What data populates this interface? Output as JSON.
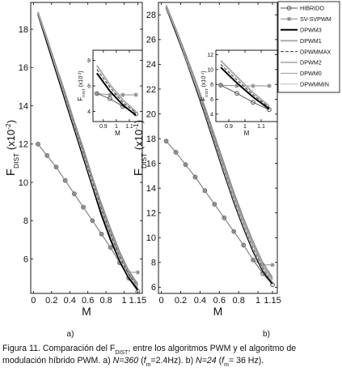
{
  "chart_data": [
    {
      "type": "line",
      "xlabel": "M",
      "ylabel": {
        "text": "F",
        "sub": "DIST",
        "unit": " (x10",
        "exp": "-2",
        "end": ")"
      },
      "label": "a)",
      "legend": true,
      "xlim": [
        -0.03,
        1.2
      ],
      "xticks": [
        0,
        0.2,
        0.4,
        0.6,
        0.8,
        1,
        1.15
      ],
      "ylim": [
        4.2,
        19.4
      ],
      "yticks": [
        6,
        8,
        10,
        12,
        14,
        16,
        18
      ],
      "x": [
        0.05,
        0.15,
        0.25,
        0.35,
        0.45,
        0.55,
        0.65,
        0.75,
        0.85,
        0.95,
        1.05,
        1.15
      ],
      "series": [
        {
          "name": "HIBRIDO",
          "color": "#555555",
          "marker": "circle",
          "values": [
            12,
            11.4,
            10.8,
            10.1,
            9.4,
            8.7,
            8.0,
            7.3,
            6.6,
            5.8,
            5.0,
            4.3
          ]
        },
        {
          "name": "SV-SVPWM",
          "color": "#888888",
          "marker": "star",
          "values": [
            12,
            11.4,
            10.8,
            10.1,
            9.4,
            8.7,
            8.0,
            7.3,
            6.6,
            5.8,
            5.3,
            5.3
          ]
        },
        {
          "name": "DPWM3",
          "color": "#000000",
          "linewidth": 2,
          "values": [
            18.8,
            17.3,
            15.8,
            14.3,
            12.8,
            11.3,
            9.8,
            8.3,
            7.0,
            5.9,
            5.0,
            4.4
          ]
        },
        {
          "name": "DPWM1",
          "color": "#aaaaaa",
          "linewidth": 2,
          "values": [
            18.9,
            17.5,
            16.0,
            14.6,
            13.1,
            11.6,
            10.2,
            8.7,
            7.4,
            6.2,
            5.3,
            4.6
          ]
        },
        {
          "name": "DPWMMAX",
          "color": "#333333",
          "dash": true,
          "values": [
            18.9,
            17.4,
            15.9,
            14.5,
            13.0,
            11.5,
            10.0,
            8.6,
            7.3,
            6.1,
            5.2,
            4.5
          ]
        },
        {
          "name": "DPWM2",
          "color": "#777777",
          "values": [
            18.9,
            17.5,
            16.1,
            14.7,
            13.2,
            11.8,
            10.3,
            8.9,
            7.6,
            6.4,
            5.4,
            4.7
          ]
        },
        {
          "name": "DPWM0",
          "color": "#999999",
          "values": [
            18.9,
            17.4,
            16.0,
            14.6,
            13.1,
            11.7,
            10.2,
            8.8,
            7.5,
            6.3,
            5.3,
            4.6
          ]
        },
        {
          "name": "DPWMMIN",
          "color": "#bbbbbb",
          "values": [
            18.8,
            17.4,
            15.9,
            14.4,
            12.9,
            11.4,
            9.9,
            8.5,
            7.2,
            6.0,
            5.1,
            4.5
          ]
        }
      ]
    },
    {
      "type": "line",
      "inset": true,
      "xlabel": "M",
      "ylabel": {
        "text": "F",
        "sub": "DIST",
        "unit": " (x10",
        "exp": "-2",
        "end": ")"
      },
      "xlim": [
        0.82,
        1.2
      ],
      "xticks": [
        0.9,
        1,
        1.1
      ],
      "ylim": [
        3.2,
        8.8
      ],
      "yticks": [
        4,
        6,
        8
      ],
      "x": [
        0.85,
        0.95,
        1.05,
        1.15
      ],
      "series": [
        {
          "color": "#555555",
          "marker": "circle",
          "values": [
            5.4,
            5.0,
            4.4,
            3.8
          ]
        },
        {
          "color": "#888888",
          "marker": "star",
          "values": [
            5.4,
            5.3,
            5.3,
            5.3
          ]
        },
        {
          "color": "#000000",
          "linewidth": 2,
          "values": [
            7.0,
            5.6,
            4.5,
            3.7
          ]
        },
        {
          "color": "#aaaaaa",
          "linewidth": 2,
          "values": [
            7.6,
            6.1,
            4.9,
            4.0
          ]
        },
        {
          "color": "#333333",
          "dash": true,
          "values": [
            7.3,
            5.9,
            4.7,
            3.9
          ]
        }
      ]
    },
    {
      "type": "line",
      "xlabel": "M",
      "ylabel": {
        "text": "F",
        "sub": "DIST",
        "unit": " (x10",
        "exp": "-1",
        "end": ")"
      },
      "label": "b)",
      "xlim": [
        -0.03,
        1.2
      ],
      "xticks": [
        0,
        0.2,
        0.4,
        0.6,
        0.8,
        1,
        1.15
      ],
      "ylim": [
        5.5,
        29
      ],
      "yticks": [
        6,
        8,
        10,
        12,
        14,
        16,
        18,
        20,
        22,
        24,
        26,
        28
      ],
      "x": [
        0.05,
        0.15,
        0.25,
        0.35,
        0.45,
        0.55,
        0.65,
        0.75,
        0.85,
        0.95,
        1.05,
        1.15
      ],
      "series": [
        {
          "color": "#555555",
          "marker": "circle",
          "values": [
            17.8,
            16.9,
            15.9,
            14.9,
            13.8,
            12.7,
            11.6,
            10.5,
            9.4,
            8.2,
            7.1,
            6.2
          ]
        },
        {
          "color": "#888888",
          "marker": "star",
          "values": [
            17.8,
            16.9,
            15.9,
            14.9,
            13.8,
            12.7,
            11.6,
            10.5,
            9.4,
            8.2,
            7.8,
            7.8
          ]
        },
        {
          "color": "#000000",
          "linewidth": 2,
          "values": [
            28.6,
            26.6,
            24.5,
            22.3,
            20.0,
            17.6,
            15.2,
            12.9,
            10.8,
            8.9,
            7.3,
            6.3
          ]
        },
        {
          "color": "#aaaaaa",
          "linewidth": 2,
          "values": [
            28.7,
            26.8,
            24.7,
            22.6,
            20.3,
            18.0,
            15.7,
            13.4,
            11.3,
            9.4,
            7.7,
            6.6
          ]
        },
        {
          "color": "#333333",
          "dash": true,
          "values": [
            28.6,
            26.7,
            24.6,
            22.4,
            20.2,
            17.8,
            15.4,
            13.1,
            11.0,
            9.1,
            7.5,
            6.4
          ]
        },
        {
          "color": "#777777",
          "values": [
            28.8,
            26.9,
            24.9,
            22.8,
            20.6,
            18.3,
            16.0,
            13.7,
            11.6,
            9.7,
            8.0,
            6.8
          ]
        },
        {
          "color": "#999999",
          "values": [
            28.7,
            26.8,
            24.8,
            22.7,
            20.4,
            18.1,
            15.8,
            13.5,
            11.4,
            9.5,
            7.8,
            6.7
          ]
        },
        {
          "color": "#bbbbbb",
          "values": [
            28.6,
            26.7,
            24.5,
            22.4,
            20.1,
            17.7,
            15.3,
            13.0,
            10.9,
            9.0,
            7.4,
            6.4
          ]
        }
      ]
    },
    {
      "type": "line",
      "inset": true,
      "xlabel": "M",
      "ylabel": {
        "text": "F",
        "sub": "DIST",
        "unit": " (x10",
        "exp": "-1",
        "end": ")"
      },
      "xlim": [
        0.82,
        1.2
      ],
      "xticks": [
        0.9,
        1,
        1.1
      ],
      "ylim": [
        3,
        12.6
      ],
      "yticks": [
        4,
        6,
        8,
        10,
        12
      ],
      "x": [
        0.85,
        0.95,
        1.05,
        1.15
      ],
      "series": [
        {
          "color": "#555555",
          "marker": "circle",
          "values": [
            7.9,
            6.8,
            5.6,
            4.6
          ]
        },
        {
          "color": "#888888",
          "marker": "star",
          "values": [
            7.9,
            7.8,
            7.8,
            7.8
          ]
        },
        {
          "color": "#000000",
          "linewidth": 2,
          "values": [
            10.3,
            8.2,
            6.3,
            4.7
          ]
        },
        {
          "color": "#aaaaaa",
          "linewidth": 2,
          "values": [
            11.2,
            9.0,
            6.9,
            5.1
          ]
        },
        {
          "color": "#333333",
          "dash": true,
          "values": [
            10.7,
            8.6,
            6.6,
            4.9
          ]
        }
      ]
    }
  ],
  "caption": {
    "lines": [
      [
        {
          "text": "Figura 11. Comparación del F"
        },
        {
          "text": "DIST",
          "style": "sub"
        },
        {
          "text": ", entre los algoritmos PWM y el algoritmo de"
        }
      ],
      [
        {
          "text": "modulación híbrido PWM. a) "
        },
        {
          "text": "N=360",
          "style": "italic"
        },
        {
          "text": " ("
        },
        {
          "text": "f",
          "style": "italic"
        },
        {
          "text": "m",
          "style": "sub"
        },
        {
          "text": "=2.4Hz). b) "
        },
        {
          "text": "N=24",
          "style": "italic"
        },
        {
          "text": " ("
        },
        {
          "text": "f",
          "style": "italic"
        },
        {
          "text": "m",
          "style": "sub"
        },
        {
          "text": "= 36 Hz)."
        }
      ]
    ]
  }
}
